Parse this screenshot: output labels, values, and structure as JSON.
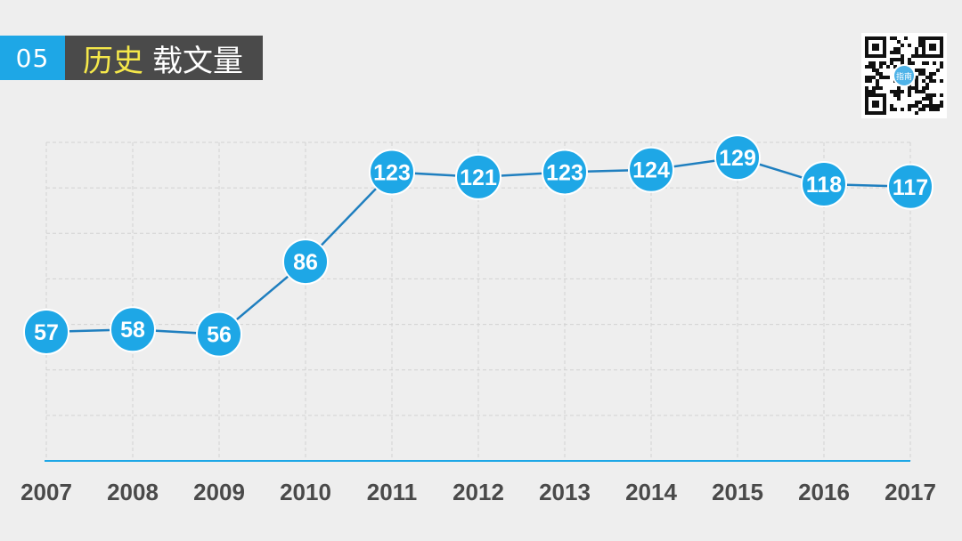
{
  "title": {
    "number": "05",
    "highlight": "历史",
    "rest": "载文量"
  },
  "qr_code": {
    "center_badge": "指南"
  },
  "colors": {
    "accent": "#1ea7e6",
    "line": "#1f7fbf",
    "title_bg": "#4a4a4a",
    "title_highlight": "#f5e84a"
  },
  "chart_data": {
    "type": "line",
    "x": [
      "2007",
      "2008",
      "2009",
      "2010",
      "2011",
      "2012",
      "2013",
      "2014",
      "2015",
      "2016",
      "2017"
    ],
    "values": [
      57,
      58,
      56,
      86,
      123,
      121,
      123,
      124,
      129,
      118,
      117
    ],
    "title": "",
    "xlabel": "",
    "ylabel": "",
    "ylim": [
      0,
      140
    ],
    "grid": true,
    "data_labels": true
  }
}
